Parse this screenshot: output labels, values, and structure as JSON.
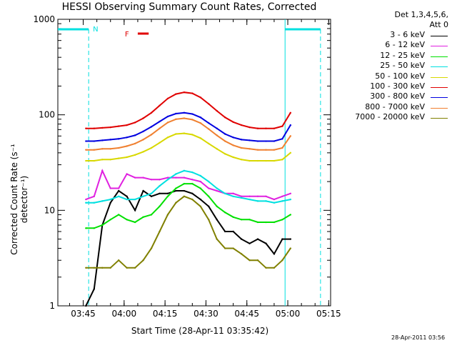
{
  "chart_data": {
    "type": "line",
    "title": "HESSI Observing Summary Count Rates, Corrected",
    "xlabel": "Start Time (28-Apr-11 03:35:42)",
    "ylabel": "Corrected Count Rate (s⁻¹ detector⁻¹)",
    "yscale": "log",
    "ylim": [
      1,
      1000
    ],
    "xlim_minutes": [
      0,
      100
    ],
    "x_tick_labels": [
      "03:45",
      "04:00",
      "04:15",
      "04:30",
      "04:45",
      "05:00",
      "05:15"
    ],
    "y_tick_labels": [
      "1",
      "10",
      "100",
      "1000"
    ],
    "legend_header": [
      "Det 1,3,4,5,6,",
      "Att 0"
    ],
    "series": [
      {
        "name": "3 - 6 keV",
        "color": "#000000",
        "x": [
          "03:46",
          "03:49",
          "03:52",
          "03:55",
          "03:58",
          "04:01",
          "04:04",
          "04:07",
          "04:10",
          "04:13",
          "04:16",
          "04:19",
          "04:22",
          "04:25",
          "04:28",
          "04:31",
          "04:34",
          "04:37",
          "04:40",
          "04:43",
          "04:46",
          "04:49",
          "04:52",
          "04:55",
          "04:58",
          "05:01"
        ],
        "y": [
          1,
          1.5,
          7,
          12,
          16,
          14,
          10,
          16,
          14,
          15,
          15,
          16,
          16,
          15,
          13,
          11,
          8,
          6,
          6,
          5,
          4.5,
          5,
          4.5,
          3.5,
          5,
          5
        ]
      },
      {
        "name": "6 - 12 keV",
        "color": "#e020e0",
        "x": [
          "03:46",
          "03:49",
          "03:52",
          "03:55",
          "03:58",
          "04:01",
          "04:04",
          "04:07",
          "04:10",
          "04:13",
          "04:16",
          "04:19",
          "04:22",
          "04:25",
          "04:28",
          "04:31",
          "04:34",
          "04:37",
          "04:40",
          "04:43",
          "04:46",
          "04:49",
          "04:52",
          "04:55",
          "04:58",
          "05:01"
        ],
        "y": [
          13,
          14,
          26,
          17,
          17,
          24,
          22,
          22,
          21,
          21,
          22,
          22,
          22,
          21,
          20,
          17,
          16,
          15,
          15,
          14,
          14,
          14,
          14,
          13,
          14,
          15
        ]
      },
      {
        "name": "12 - 25 keV",
        "color": "#00e000",
        "x": [
          "03:46",
          "03:49",
          "03:52",
          "03:55",
          "03:58",
          "04:01",
          "04:04",
          "04:07",
          "04:10",
          "04:13",
          "04:16",
          "04:19",
          "04:22",
          "04:25",
          "04:28",
          "04:31",
          "04:34",
          "04:37",
          "04:40",
          "04:43",
          "04:46",
          "04:49",
          "04:52",
          "04:55",
          "04:58",
          "05:01"
        ],
        "y": [
          6.5,
          6.5,
          7,
          8,
          9,
          8,
          7.5,
          8.5,
          9,
          11,
          14,
          17,
          19,
          19,
          17,
          14,
          11,
          9.5,
          8.5,
          8,
          8,
          7.5,
          7.5,
          7.5,
          8,
          9
        ]
      },
      {
        "name": "25 - 50 keV",
        "color": "#00e0e0",
        "x": [
          "03:46",
          "03:49",
          "03:52",
          "03:55",
          "03:58",
          "04:01",
          "04:04",
          "04:07",
          "04:10",
          "04:13",
          "04:16",
          "04:19",
          "04:22",
          "04:25",
          "04:28",
          "04:31",
          "04:34",
          "04:37",
          "04:40",
          "04:43",
          "04:46",
          "04:49",
          "04:52",
          "04:55",
          "04:58",
          "05:01"
        ],
        "y": [
          12,
          12,
          12.5,
          13,
          14,
          13,
          13,
          14,
          15,
          18,
          21,
          24,
          26,
          25,
          23,
          20,
          17,
          15,
          14,
          13.5,
          13,
          12.5,
          12.5,
          12,
          12.5,
          13
        ]
      },
      {
        "name": "50 - 100 keV",
        "color": "#d8d800",
        "x": [
          "03:46",
          "03:49",
          "03:52",
          "03:55",
          "03:58",
          "04:01",
          "04:04",
          "04:07",
          "04:10",
          "04:13",
          "04:16",
          "04:19",
          "04:22",
          "04:25",
          "04:28",
          "04:31",
          "04:34",
          "04:37",
          "04:40",
          "04:43",
          "04:46",
          "04:49",
          "04:52",
          "04:55",
          "04:58",
          "05:01"
        ],
        "y": [
          33,
          33,
          34,
          34,
          35,
          36,
          38,
          41,
          45,
          51,
          58,
          63,
          64,
          62,
          57,
          50,
          44,
          39,
          36,
          34,
          33,
          33,
          33,
          33,
          34,
          40
        ]
      },
      {
        "name": "100 - 300 keV",
        "color": "#e00000",
        "x": [
          "03:46",
          "03:49",
          "03:52",
          "03:55",
          "03:58",
          "04:01",
          "04:04",
          "04:07",
          "04:10",
          "04:13",
          "04:16",
          "04:19",
          "04:22",
          "04:25",
          "04:28",
          "04:31",
          "04:34",
          "04:37",
          "04:40",
          "04:43",
          "04:46",
          "04:49",
          "04:52",
          "04:55",
          "04:58",
          "05:01"
        ],
        "y": [
          72,
          72,
          73,
          74,
          76,
          78,
          83,
          92,
          105,
          125,
          148,
          165,
          172,
          168,
          152,
          130,
          110,
          94,
          84,
          78,
          74,
          72,
          72,
          72,
          76,
          105
        ]
      },
      {
        "name": "300 - 800 keV",
        "color": "#0000e0",
        "x": [
          "03:46",
          "03:49",
          "03:52",
          "03:55",
          "03:58",
          "04:01",
          "04:04",
          "04:07",
          "04:10",
          "04:13",
          "04:16",
          "04:19",
          "04:22",
          "04:25",
          "04:28",
          "04:31",
          "04:34",
          "04:37",
          "04:40",
          "04:43",
          "04:46",
          "04:49",
          "04:52",
          "04:55",
          "04:58",
          "05:01"
        ],
        "y": [
          53,
          53,
          54,
          55,
          56,
          58,
          61,
          67,
          75,
          85,
          96,
          103,
          105,
          102,
          94,
          82,
          72,
          63,
          58,
          55,
          54,
          53,
          53,
          53,
          56,
          78
        ]
      },
      {
        "name": "800 - 7000 keV",
        "color": "#f08030",
        "x": [
          "03:46",
          "03:49",
          "03:52",
          "03:55",
          "03:58",
          "04:01",
          "04:04",
          "04:07",
          "04:10",
          "04:13",
          "04:16",
          "04:19",
          "04:22",
          "04:25",
          "04:28",
          "04:31",
          "04:34",
          "04:37",
          "04:40",
          "04:43",
          "04:46",
          "04:49",
          "04:52",
          "04:55",
          "04:58",
          "05:01"
        ],
        "y": [
          43,
          43,
          44,
          44,
          45,
          47,
          50,
          55,
          62,
          72,
          83,
          90,
          92,
          89,
          82,
          71,
          61,
          53,
          48,
          45,
          44,
          43,
          43,
          43,
          45,
          60
        ]
      },
      {
        "name": "7000 - 20000 keV",
        "color": "#808000",
        "x": [
          "03:46",
          "03:49",
          "03:52",
          "03:55",
          "03:58",
          "04:01",
          "04:04",
          "04:07",
          "04:10",
          "04:13",
          "04:16",
          "04:19",
          "04:22",
          "04:25",
          "04:28",
          "04:31",
          "04:34",
          "04:37",
          "04:40",
          "04:43",
          "04:46",
          "04:49",
          "04:52",
          "04:55",
          "04:58",
          "05:01"
        ],
        "y": [
          2.5,
          2.5,
          2.5,
          2.5,
          3,
          2.5,
          2.5,
          3,
          4,
          6,
          9,
          12,
          14,
          13,
          11,
          8,
          5,
          4,
          4,
          3.5,
          3,
          3,
          2.5,
          2.5,
          3,
          4
        ]
      }
    ],
    "annotations": {
      "night_label": "N",
      "flare_label": "F",
      "flare_color": "#e00000",
      "boundary_color": "#00e0e0",
      "night_start": "03:37",
      "night_end": "03:47",
      "day_start": "04:59",
      "day_end": "05:12",
      "flare_start": "04:05",
      "flare_end": "04:09"
    }
  },
  "datestamp": "28-Apr-2011 03:56"
}
